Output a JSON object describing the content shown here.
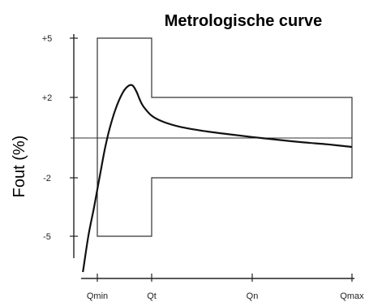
{
  "chart_data": {
    "type": "line",
    "title": "Metrologische curve",
    "xlabel": "",
    "ylabel": "Fout (%)",
    "x_ticks": [
      "Qmin",
      "Qt",
      "Qn",
      "Qmax"
    ],
    "y_ticks": [
      {
        "value": 5,
        "label": "+5"
      },
      {
        "value": 2,
        "label": "+2"
      },
      {
        "value": -2,
        "label": "-2"
      },
      {
        "value": -5,
        "label": "-5"
      }
    ],
    "xlim": [
      -0.5,
      4.4
    ],
    "ylim": [
      -7.0,
      6.0
    ],
    "x_positions": {
      "Qmin": 0.0,
      "Qt": 1.0,
      "Qn": 2.75,
      "Qmax": 4.4
    },
    "tolerance_band": {
      "segments": [
        {
          "x_from": "Qmin",
          "x_to": "Qt",
          "upper": 5,
          "lower": -5
        },
        {
          "x_from": "Qt",
          "x_to": "Qmax",
          "upper": 2,
          "lower": -2
        }
      ]
    },
    "reference_line": 0,
    "series": [
      {
        "x": [
          -0.24,
          -0.15,
          -0.06,
          0.0,
          0.06,
          0.15,
          0.25,
          0.36,
          0.48,
          0.58,
          0.65,
          0.72,
          0.78,
          0.85,
          1.0,
          1.2,
          1.5,
          1.9,
          2.3,
          2.75,
          3.2,
          3.6,
          4.0,
          4.4
        ],
        "y": [
          -6.8,
          -5.0,
          -3.6,
          -2.6,
          -1.7,
          -0.4,
          0.7,
          1.6,
          2.3,
          2.6,
          2.6,
          2.3,
          1.9,
          1.55,
          1.1,
          0.8,
          0.55,
          0.35,
          0.2,
          0.05,
          -0.1,
          -0.22,
          -0.32,
          -0.45
        ]
      }
    ]
  }
}
